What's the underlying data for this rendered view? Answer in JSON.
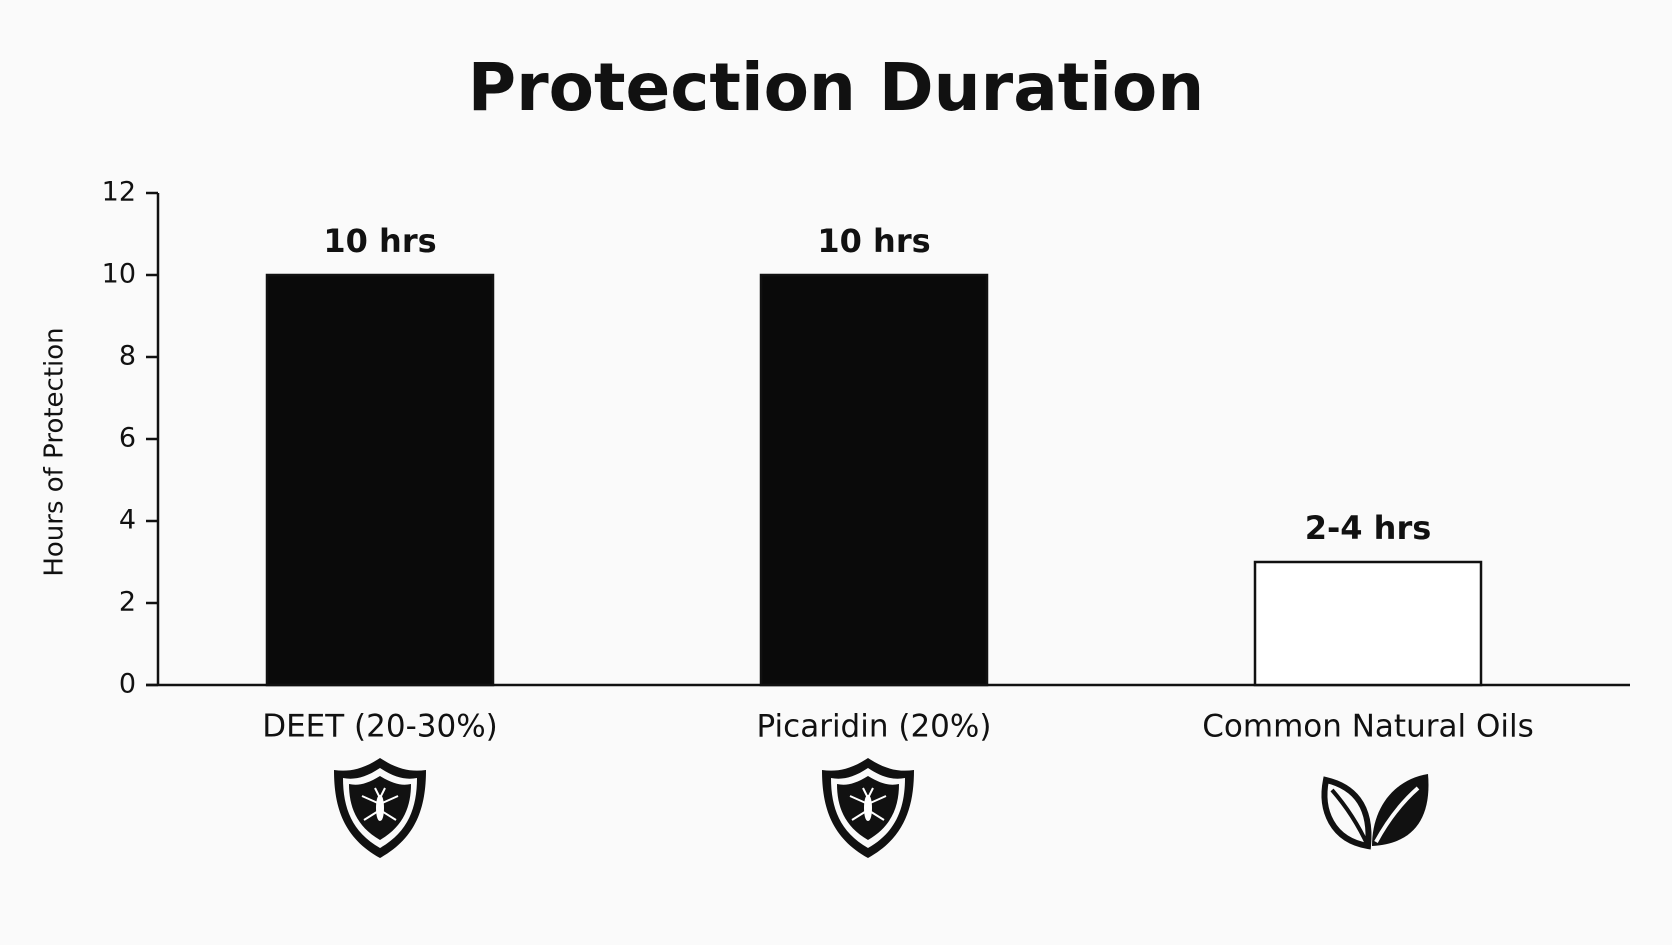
{
  "chart_data": {
    "type": "bar",
    "title": "Protection Duration",
    "y_label": "Hours of Protection",
    "categories": [
      "DEET (20-30%)",
      "Picaridin (20%)",
      "Common Natural Oils"
    ],
    "values": [
      10,
      10,
      3
    ],
    "value_labels": [
      "10 hrs",
      "10 hrs",
      "2-4 hrs"
    ],
    "colors": [
      "#0a0a0a",
      "#0a0a0a",
      "#ffffff"
    ],
    "ylim": [
      0,
      12
    ],
    "yticks": [
      0,
      2,
      4,
      6,
      8,
      10,
      12
    ],
    "grid": false
  }
}
